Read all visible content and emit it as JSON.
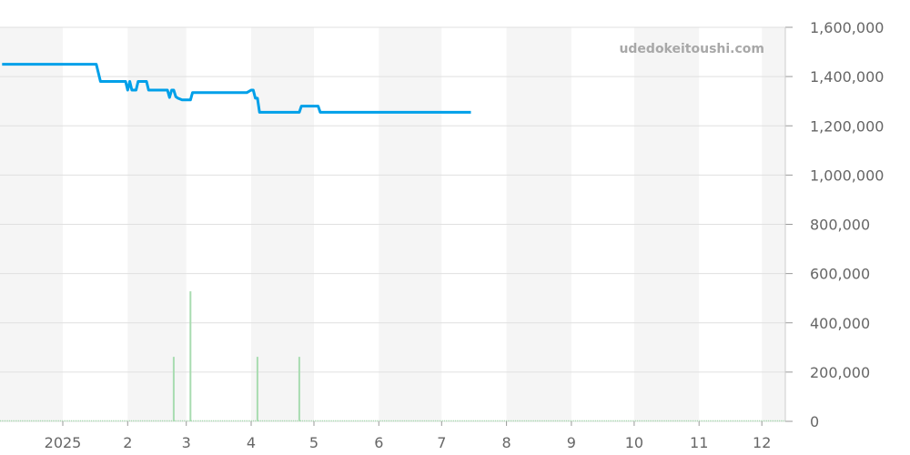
{
  "chart_data": {
    "type": "line",
    "watermark": "udedokeitoushi.com",
    "y_axis_position": "right",
    "ylim": [
      0,
      1600000
    ],
    "y_ticks": [
      "0",
      "200,000",
      "400,000",
      "600,000",
      "800,000",
      "1,000,000",
      "1,200,000",
      "1,400,000",
      "1,600,000"
    ],
    "x_ticks": [
      {
        "date": "2025-01-01",
        "label": "2025"
      },
      {
        "date": "2025-02-01",
        "label": "2"
      },
      {
        "date": "2025-03-01",
        "label": "3"
      },
      {
        "date": "2025-04-01",
        "label": "4"
      },
      {
        "date": "2025-05-01",
        "label": "5"
      },
      {
        "date": "2025-06-01",
        "label": "6"
      },
      {
        "date": "2025-07-01",
        "label": "7"
      },
      {
        "date": "2025-08-01",
        "label": "8"
      },
      {
        "date": "2025-09-01",
        "label": "9"
      },
      {
        "date": "2025-10-01",
        "label": "10"
      },
      {
        "date": "2025-11-01",
        "label": "11"
      },
      {
        "date": "2025-12-01",
        "label": "12"
      }
    ],
    "xlim": [
      "2024-12-01",
      "2025-12-12"
    ],
    "grid": true,
    "alternating_month_bands": true,
    "colors": {
      "price": "#00a0e9",
      "volume": "#a8dcb0",
      "band": "#f5f5f5",
      "grid": "#e0e0e0"
    },
    "series": [
      {
        "type": "line",
        "points": [
          [
            "2024-12-03",
            1450000
          ],
          [
            "2025-01-17",
            1450000
          ],
          [
            "2025-01-19",
            1380000
          ],
          [
            "2025-01-31",
            1380000
          ],
          [
            "2025-02-01",
            1345000
          ],
          [
            "2025-02-02",
            1380000
          ],
          [
            "2025-02-03",
            1345000
          ],
          [
            "2025-02-05",
            1345000
          ],
          [
            "2025-02-06",
            1380000
          ],
          [
            "2025-02-10",
            1380000
          ],
          [
            "2025-02-11",
            1345000
          ],
          [
            "2025-02-20",
            1345000
          ],
          [
            "2025-02-21",
            1315000
          ],
          [
            "2025-02-22",
            1345000
          ],
          [
            "2025-02-23",
            1345000
          ],
          [
            "2025-02-24",
            1318000
          ],
          [
            "2025-02-25",
            1312000
          ],
          [
            "2025-02-27",
            1305000
          ],
          [
            "2025-03-03",
            1305000
          ],
          [
            "2025-03-04",
            1335000
          ],
          [
            "2025-03-30",
            1335000
          ],
          [
            "2025-04-01",
            1345000
          ],
          [
            "2025-04-02",
            1345000
          ],
          [
            "2025-04-03",
            1312000
          ],
          [
            "2025-04-04",
            1312000
          ],
          [
            "2025-04-05",
            1255000
          ],
          [
            "2025-04-24",
            1255000
          ],
          [
            "2025-04-25",
            1280000
          ],
          [
            "2025-05-03",
            1280000
          ],
          [
            "2025-05-04",
            1255000
          ],
          [
            "2025-07-15",
            1255000
          ]
        ]
      },
      {
        "type": "bar",
        "points": [
          [
            "2025-02-23",
            262000
          ],
          [
            "2025-03-03",
            528000
          ],
          [
            "2025-04-04",
            262000
          ],
          [
            "2025-04-24",
            262000
          ]
        ]
      }
    ]
  }
}
